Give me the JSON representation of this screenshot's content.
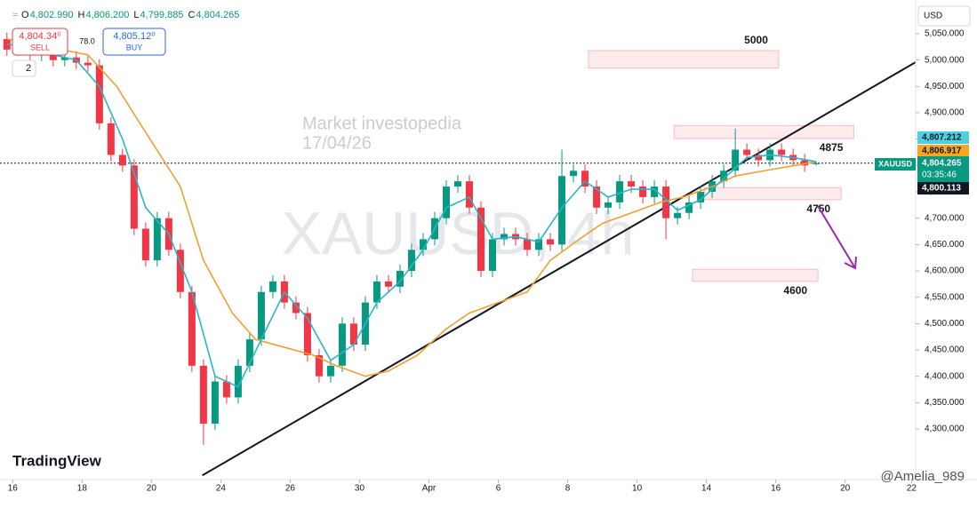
{
  "header": {
    "ohlc": [
      {
        "key": "O",
        "value": "4,802.990"
      },
      {
        "key": "H",
        "value": "4,806.200"
      },
      {
        "key": "L",
        "value": "4,799.885"
      },
      {
        "key": "C",
        "value": "4,804.265"
      }
    ],
    "sell": {
      "price": "4,804.34⁰",
      "label": "SELL"
    },
    "spread": "78.0",
    "buy": {
      "price": "4,805.12⁰",
      "label": "BUY"
    },
    "indicators": "2",
    "currency": "USD"
  },
  "watermark": {
    "line1": "Market investopedia",
    "line2": "17/04/26",
    "symbol": "XAUUSD, 4h"
  },
  "logo": "TradingView",
  "credit": "@Amelia_989",
  "chart_data": {
    "type": "candlestick",
    "up_color": "#089981",
    "down_color": "#f23645",
    "grid": false,
    "xlim": [
      -1.2,
      157.2
    ],
    "ylim": [
      4204,
      5114
    ],
    "xticks": [
      {
        "value": 1,
        "label": "16"
      },
      {
        "value": 13,
        "label": "18"
      },
      {
        "value": 25,
        "label": "20"
      },
      {
        "value": 37,
        "label": "24"
      },
      {
        "value": 49,
        "label": "26"
      },
      {
        "value": 61,
        "label": "30"
      },
      {
        "value": 73,
        "label": "Apr"
      },
      {
        "value": 85,
        "label": "6"
      },
      {
        "value": 97,
        "label": "8"
      },
      {
        "value": 109,
        "label": "10"
      },
      {
        "value": 121,
        "label": "14"
      },
      {
        "value": 133,
        "label": "16"
      },
      {
        "value": 145,
        "label": "20"
      },
      {
        "value": 156.5,
        "label": "22"
      }
    ],
    "yticks": [
      {
        "value": 4300,
        "label": "4,300.000"
      },
      {
        "value": 4350,
        "label": "4,350.000"
      },
      {
        "value": 4400,
        "label": "4,400.000"
      },
      {
        "value": 4450,
        "label": "4,450.000"
      },
      {
        "value": 4500,
        "label": "4,500.000"
      },
      {
        "value": 4550,
        "label": "4,550.000"
      },
      {
        "value": 4600,
        "label": "4,600.000"
      },
      {
        "value": 4650,
        "label": "4,650.000"
      },
      {
        "value": 4700,
        "label": "4,700.000"
      },
      {
        "value": 4750,
        "label": "4,750.000"
      },
      {
        "value": 4800,
        "label": "4,800.000"
      },
      {
        "value": 4850,
        "label": "4,850.000"
      },
      {
        "value": 4900,
        "label": "4,900.000"
      },
      {
        "value": 4950,
        "label": "4,950.000"
      },
      {
        "value": 5000,
        "label": "5,000.000"
      },
      {
        "value": 5050,
        "label": "5,050.000"
      }
    ],
    "candles": {
      "x": [
        0,
        2,
        4,
        6,
        8,
        10,
        12,
        14,
        16,
        18,
        20,
        22,
        24,
        26,
        28,
        30,
        32,
        34,
        36,
        38,
        40,
        42,
        44,
        46,
        48,
        50,
        52,
        54,
        56,
        58,
        60,
        62,
        64,
        66,
        68,
        70,
        72,
        74,
        76,
        78,
        80,
        82,
        84,
        86,
        88,
        90,
        92,
        94,
        96,
        98,
        100,
        102,
        104,
        106,
        108,
        110,
        112,
        114,
        116,
        118,
        120,
        122,
        124,
        126,
        128,
        130,
        132,
        134,
        136,
        138,
        140
      ],
      "open": [
        5040,
        5020,
        5030,
        5010,
        5015,
        5000,
        5005,
        4995,
        4990,
        4880,
        4820,
        4800,
        4680,
        4620,
        4700,
        4640,
        4560,
        4420,
        4310,
        4390,
        4360,
        4420,
        4470,
        4560,
        4580,
        4540,
        4520,
        4440,
        4400,
        4420,
        4500,
        4460,
        4540,
        4580,
        4570,
        4600,
        4640,
        4660,
        4700,
        4760,
        4770,
        4720,
        4600,
        4660,
        4670,
        4660,
        4640,
        4660,
        4650,
        4780,
        4790,
        4760,
        4720,
        4730,
        4770,
        4760,
        4740,
        4760,
        4700,
        4710,
        4730,
        4750,
        4770,
        4790,
        4830,
        4820,
        4810,
        4830,
        4820,
        4810,
        4802.99
      ],
      "high": [
        5052,
        5042,
        5042,
        5027,
        5027,
        5017,
        5017,
        5007,
        5002,
        4892,
        4832,
        4812,
        4692,
        4712,
        4712,
        4652,
        4572,
        4432,
        4402,
        4402,
        4432,
        4482,
        4572,
        4592,
        4592,
        4552,
        4532,
        4452,
        4432,
        4512,
        4512,
        4552,
        4592,
        4592,
        4612,
        4652,
        4672,
        4712,
        4772,
        4782,
        4782,
        4732,
        4672,
        4682,
        4682,
        4672,
        4672,
        4672,
        4830,
        4802,
        4802,
        4772,
        4742,
        4782,
        4782,
        4772,
        4772,
        4772,
        4722,
        4742,
        4762,
        4782,
        4802,
        4870,
        4842,
        4832,
        4842,
        4842,
        4832,
        4822,
        4806.2
      ],
      "low": [
        5008,
        5008,
        4998,
        4998,
        4988,
        4988,
        4983,
        4978,
        4868,
        4808,
        4788,
        4668,
        4608,
        4608,
        4628,
        4548,
        4408,
        4270,
        4298,
        4348,
        4348,
        4408,
        4458,
        4548,
        4528,
        4508,
        4428,
        4388,
        4388,
        4408,
        4448,
        4448,
        4528,
        4558,
        4558,
        4588,
        4628,
        4648,
        4688,
        4748,
        4708,
        4588,
        4588,
        4648,
        4648,
        4628,
        4628,
        4638,
        4638,
        4768,
        4748,
        4708,
        4708,
        4718,
        4748,
        4728,
        4728,
        4660,
        4688,
        4698,
        4718,
        4738,
        4758,
        4778,
        4808,
        4798,
        4798,
        4808,
        4798,
        4788,
        4799.885
      ],
      "close": [
        5020,
        5030,
        5010,
        5015,
        5000,
        5005,
        4995,
        4990,
        4880,
        4820,
        4800,
        4680,
        4620,
        4700,
        4640,
        4560,
        4420,
        4310,
        4390,
        4360,
        4420,
        4470,
        4560,
        4580,
        4540,
        4520,
        4440,
        4400,
        4420,
        4500,
        4460,
        4540,
        4580,
        4570,
        4600,
        4640,
        4660,
        4700,
        4760,
        4770,
        4720,
        4600,
        4660,
        4670,
        4660,
        4640,
        4660,
        4650,
        4780,
        4790,
        4760,
        4720,
        4730,
        4770,
        4760,
        4740,
        4760,
        4700,
        4710,
        4730,
        4750,
        4770,
        4790,
        4830,
        4820,
        4810,
        4830,
        4820,
        4810,
        4800,
        4804.265
      ]
    },
    "lines": [
      {
        "color": "#f0a030",
        "x": [
          0,
          14,
          19,
          23,
          30,
          34,
          39,
          43,
          48,
          53,
          57,
          62,
          66,
          71,
          76,
          80,
          85,
          90,
          94,
          99,
          103,
          108,
          113,
          117,
          122,
          126,
          131,
          140
        ],
        "values": [
          5040,
          5010,
          4950,
          4880,
          4760,
          4620,
          4520,
          4470,
          4455,
          4440,
          4420,
          4400,
          4410,
          4440,
          4490,
          4520,
          4540,
          4560,
          4620,
          4660,
          4690,
          4710,
          4730,
          4740,
          4760,
          4780,
          4790,
          4806.917
        ]
      },
      {
        "color": "#29b6c8",
        "x": [
          0,
          4,
          8,
          12,
          16,
          20,
          24,
          28,
          32,
          36,
          40,
          44,
          48,
          52,
          56,
          60,
          64,
          68,
          72,
          76,
          80,
          84,
          88,
          92,
          96,
          100,
          104,
          108,
          112,
          116,
          120,
          124,
          128,
          132,
          136,
          140
        ],
        "values": [
          5030,
          5025,
          5010,
          5000,
          4950,
          4850,
          4720,
          4670,
          4560,
          4400,
          4380,
          4470,
          4560,
          4510,
          4430,
          4460,
          4540,
          4580,
          4640,
          4720,
          4740,
          4660,
          4665,
          4655,
          4720,
          4770,
          4740,
          4755,
          4755,
          4715,
          4735,
          4775,
          4815,
          4820,
          4815,
          4807.212
        ]
      }
    ],
    "price_line": 4804.265,
    "trendline": {
      "x": [
        33.8,
        157.2
      ],
      "y": [
        4212,
        4996
      ]
    },
    "zones": [
      {
        "label": "5000",
        "x": [
          100.6,
          133.5
        ],
        "y": [
          4985,
          5018
        ]
      },
      {
        "label": "4875",
        "x": [
          115.4,
          146.5
        ],
        "y": [
          4851,
          4876
        ]
      },
      {
        "label": "4750",
        "x": [
          120.6,
          144.3
        ],
        "y": [
          4735,
          4758
        ]
      },
      {
        "label": "4600",
        "x": [
          118.6,
          140.3
        ],
        "y": [
          4580,
          4603
        ]
      }
    ],
    "price_labels": [
      {
        "value": 4807.212,
        "label": "4,807.212",
        "color": "#4dd0e1"
      },
      {
        "value": 4806.917,
        "label": "4,806.917",
        "color": "#f5a623"
      },
      {
        "value": 4804.265,
        "label": "4,804.265",
        "name": "XAUUSD",
        "timer": "03:35:46",
        "color": "#089981"
      },
      {
        "value": 4800.113,
        "label": "4,800.113",
        "color": "#131722"
      }
    ]
  }
}
